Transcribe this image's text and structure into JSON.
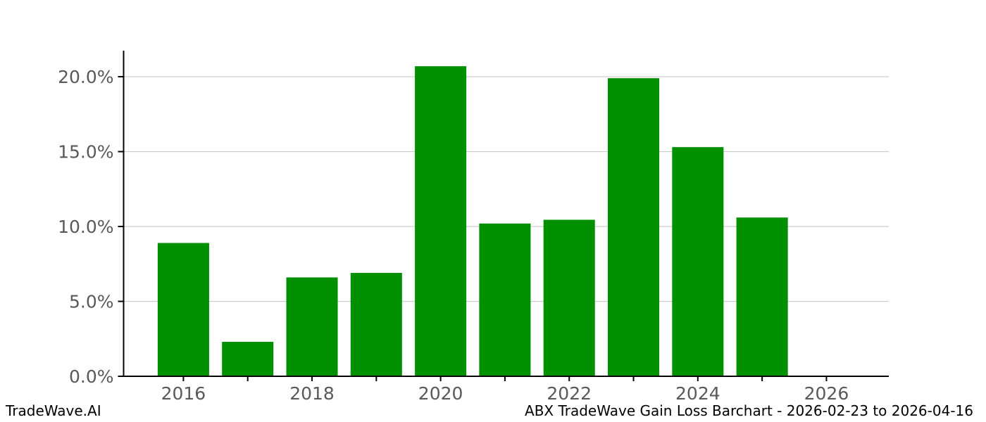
{
  "footer": {
    "left": "TradeWave.AI",
    "right": "ABX TradeWave Gain Loss Barchart - 2026-02-23 to 2026-04-16"
  },
  "chart_data": {
    "type": "bar",
    "title": "ABX TradeWave Gain Loss Barchart - 2026-02-23 to 2026-04-16",
    "xlabel": "",
    "ylabel": "",
    "unit": "%",
    "categories": [
      2016,
      2017,
      2018,
      2019,
      2020,
      2021,
      2022,
      2023,
      2024,
      2025
    ],
    "values": [
      8.9,
      2.3,
      6.6,
      6.9,
      20.7,
      10.2,
      10.45,
      19.9,
      15.3,
      10.6
    ],
    "x_ticks": [
      2016,
      2017,
      2018,
      2019,
      2020,
      2021,
      2022,
      2023,
      2024,
      2025,
      2026
    ],
    "x_tick_labels": [
      "2016",
      "",
      "2018",
      "",
      "2020",
      "",
      "2022",
      "",
      "2024",
      "",
      "2026"
    ],
    "y_ticks": [
      0,
      5,
      10,
      15,
      20
    ],
    "y_tick_labels": [
      "0.0%",
      "5.0%",
      "10.0%",
      "15.0%",
      "20.0%"
    ],
    "xlim": [
      2015.07,
      2026.97
    ],
    "ylim": [
      0,
      21.74
    ],
    "grid": true,
    "legend": "none",
    "bar_color": "#009000",
    "grid_color": "#cccccc",
    "axis_color": "#000000",
    "tick_label_color": "#595959"
  }
}
